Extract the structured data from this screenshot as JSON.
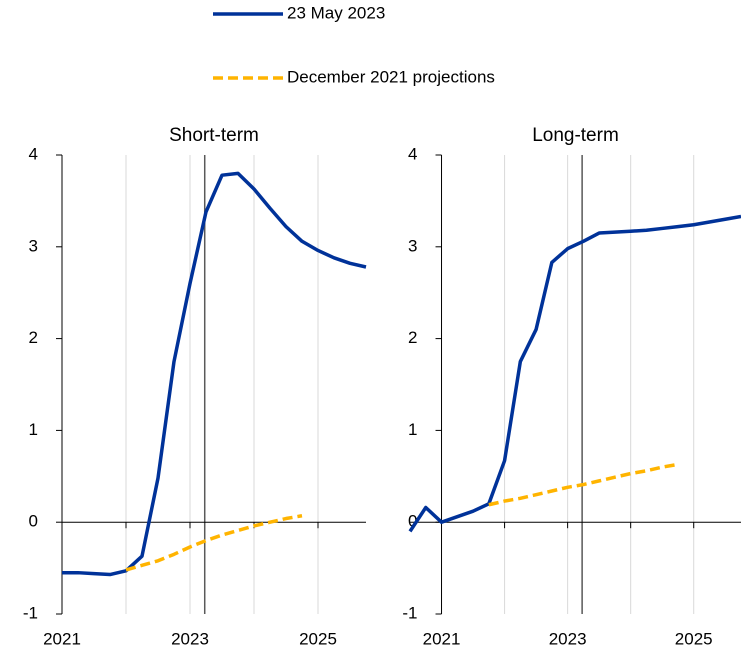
{
  "chart_data": [
    {
      "type": "line",
      "title": "Short-term",
      "xlim": [
        2021,
        2025.75
      ],
      "xticks": [
        2021,
        2023,
        2025
      ],
      "xgrid": [
        2022,
        2023,
        2024,
        2025
      ],
      "ylim": [
        -1,
        4
      ],
      "yticks": [
        -1,
        0,
        1,
        2,
        3,
        4
      ],
      "reference_x": 2023.23,
      "series": [
        {
          "name": "23 May 2023",
          "color": "#003299",
          "dash": false,
          "x": [
            2021,
            2021.25,
            2021.5,
            2021.75,
            2022,
            2022.25,
            2022.5,
            2022.75,
            2023,
            2023.25,
            2023.5,
            2023.75,
            2024,
            2024.25,
            2024.5,
            2024.75,
            2025,
            2025.25,
            2025.5,
            2025.75
          ],
          "values": [
            -0.55,
            -0.55,
            -0.56,
            -0.57,
            -0.53,
            -0.37,
            0.48,
            1.75,
            2.6,
            3.38,
            3.78,
            3.8,
            3.63,
            3.42,
            3.22,
            3.06,
            2.96,
            2.88,
            2.82,
            2.78
          ]
        },
        {
          "name": "December 2021 projections",
          "color": "#ffb400",
          "dash": true,
          "x": [
            2022,
            2022.25,
            2022.5,
            2022.75,
            2023,
            2023.25,
            2023.5,
            2023.75,
            2024,
            2024.25,
            2024.5,
            2024.75
          ],
          "values": [
            -0.52,
            -0.47,
            -0.42,
            -0.35,
            -0.27,
            -0.2,
            -0.14,
            -0.09,
            -0.04,
            0.0,
            0.04,
            0.07
          ]
        }
      ]
    },
    {
      "type": "line",
      "title": "Long-term",
      "xlim": [
        2020.5,
        2025.75
      ],
      "xticks": [
        2021,
        2023,
        2025
      ],
      "xgrid": [
        2022,
        2023,
        2024,
        2025
      ],
      "ylim": [
        -1,
        4
      ],
      "yticks": [
        -1,
        0,
        1,
        2,
        3,
        4
      ],
      "reference_x": 2023.23,
      "series": [
        {
          "color": "#003299",
          "dash": false,
          "x": [
            2020.5,
            2020.75,
            2021,
            2021.25,
            2021.5,
            2021.75,
            2022,
            2022.25,
            2022.5,
            2022.75,
            2023,
            2023.25,
            2023.5,
            2023.75,
            2024,
            2024.25,
            2024.5,
            2024.75,
            2025,
            2025.25,
            2025.5,
            2025.75
          ],
          "values": [
            -0.1,
            0.16,
            0.0,
            0.06,
            0.12,
            0.2,
            0.67,
            1.75,
            2.1,
            2.83,
            2.98,
            3.06,
            3.15,
            3.16,
            3.17,
            3.18,
            3.2,
            3.22,
            3.24,
            3.27,
            3.3,
            3.33
          ]
        },
        {
          "color": "#ffb400",
          "dash": true,
          "x": [
            2021.75,
            2022,
            2022.25,
            2022.5,
            2022.75,
            2023,
            2023.25,
            2023.5,
            2023.75,
            2024,
            2024.25,
            2024.5,
            2024.75
          ],
          "values": [
            0.19,
            0.23,
            0.26,
            0.3,
            0.34,
            0.38,
            0.41,
            0.45,
            0.49,
            0.53,
            0.56,
            0.6,
            0.63
          ]
        }
      ]
    }
  ]
}
